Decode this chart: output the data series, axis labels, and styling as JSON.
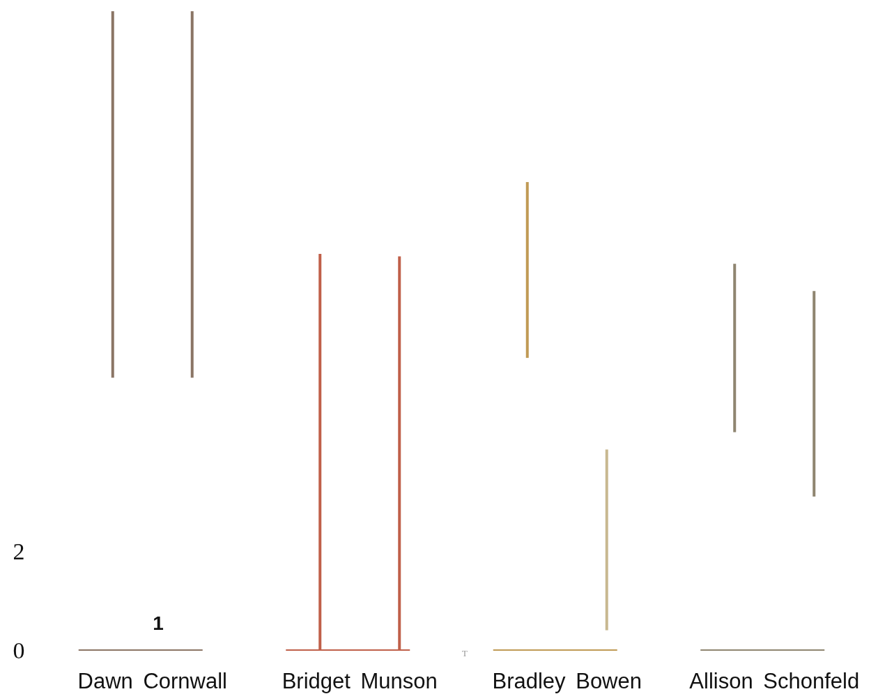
{
  "chart_data": {
    "type": "bar",
    "categories": [
      "Dawn Cornwall",
      "Bridget Munson",
      "Bradley Bowen",
      "Allison Schonfeld"
    ],
    "series": [
      {
        "colors": [
          "#8b7565",
          "#c0604a",
          "#c09a55",
          "#8f8570"
        ],
        "base": [
          5.5,
          0,
          5.9,
          4.4
        ],
        "values": [
          7.4,
          8.0,
          3.55,
          3.4
        ]
      },
      {
        "colors": [
          "#8b7565",
          "#c0604a",
          "#c8b890",
          "#8f8570"
        ],
        "base": [
          5.5,
          0,
          0.4,
          3.1
        ],
        "values": [
          7.4,
          7.95,
          3.65,
          4.15
        ]
      }
    ],
    "ylim": [
      0,
      13
    ],
    "yticks": [
      0,
      2
    ],
    "annotations": [
      "1",
      "T"
    ]
  }
}
